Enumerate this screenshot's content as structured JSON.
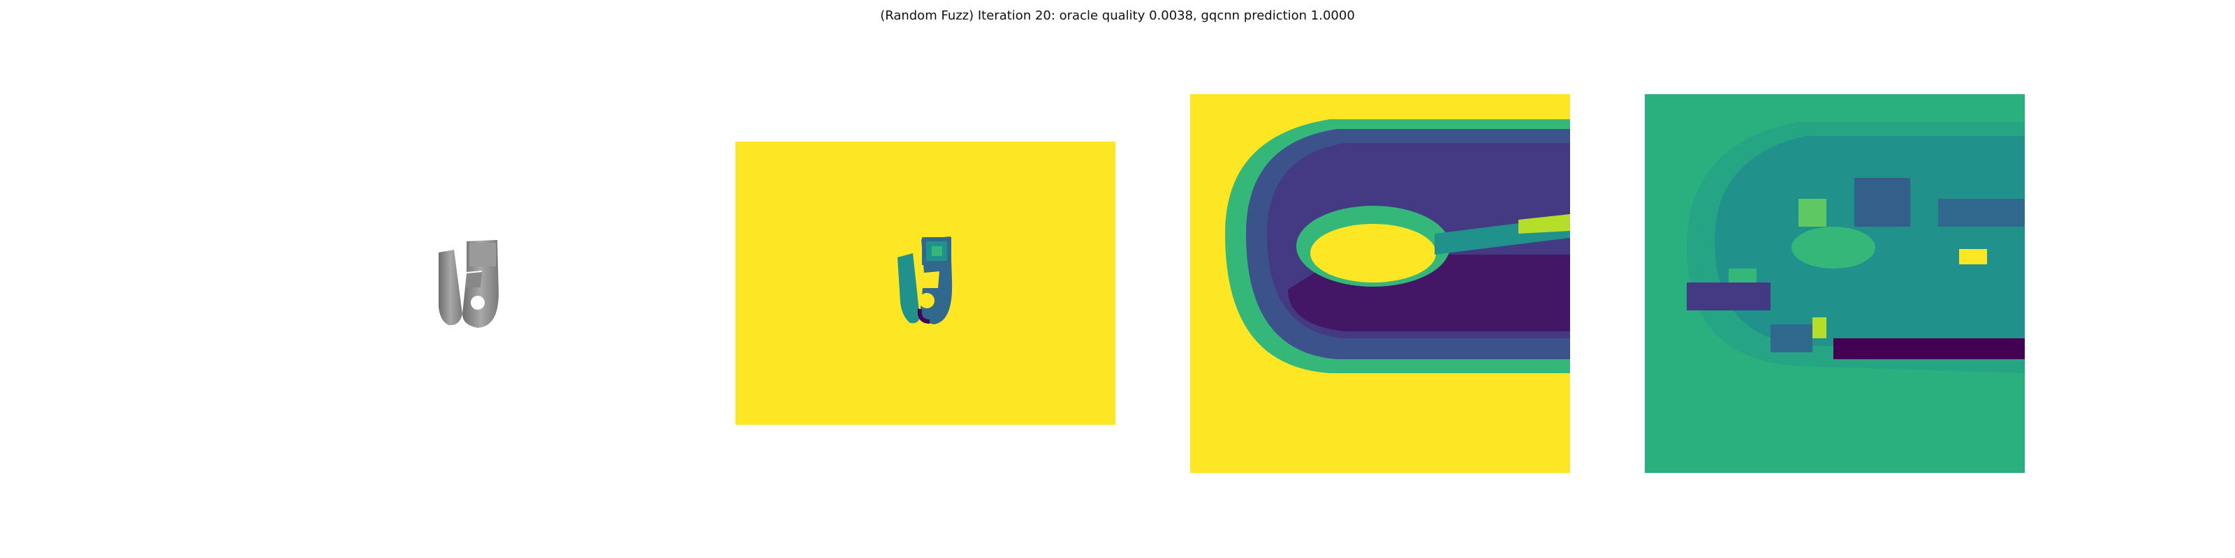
{
  "figure": {
    "title": "(Random Fuzz) Iteration 20: oracle quality 0.0038, gqcnn prediction 1.0000"
  },
  "colors": {
    "viridis_yellow": "#fde725",
    "viridis_green": "#35b779",
    "viridis_teal": "#21918c",
    "viridis_blue": "#31688e",
    "viridis_indigo": "#443983",
    "viridis_purple": "#440154",
    "object_gray": "#8a8a8a"
  }
}
